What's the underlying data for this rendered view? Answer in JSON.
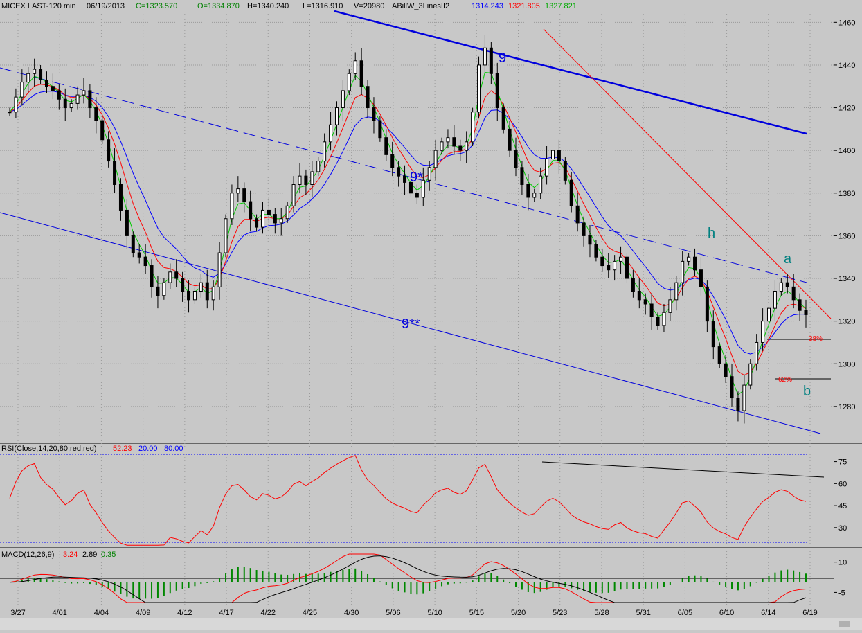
{
  "header": {
    "symbol": "MICEX LAST-120 min",
    "date": "06/19/2013",
    "close": "C=1323.570",
    "open": "O=1334.870",
    "high": "H=1340.240",
    "low": "L=1316.910",
    "volume": "V=20980",
    "indicator": "ABillW_3LinesII2",
    "ma_blue": "1314.243",
    "ma_red": "1321.805",
    "ma_green": "1327.821"
  },
  "colors": {
    "background": "#c8c8c8",
    "candles": "#000000",
    "ma_blue": "#0000ff",
    "ma_red": "#ff0000",
    "ma_green": "#00cc00",
    "trend_blue": "#0000ff",
    "rsi": "#ff0000",
    "macd": "#ff0000",
    "signal": "#000000",
    "histogram": "#008800"
  },
  "annotations": {
    "wave_9": "9",
    "wave_9_star": "9*",
    "wave_9_2star": "9**",
    "wave_h": "h",
    "wave_a": "a",
    "wave_b": "b",
    "fib_38": "38%",
    "fib_62": "62%"
  },
  "rsi_panel": {
    "label": "RSI(Close,14,20,80,red,red)",
    "value": "52.23",
    "low": "20.00",
    "high": "80.00",
    "ticks": [
      75,
      60,
      45,
      30
    ]
  },
  "macd_panel": {
    "label": "MACD(12,26,9)",
    "macd": "3.24",
    "signal": "2.89",
    "hist": "0.35",
    "ticks": [
      10,
      -5
    ]
  },
  "chart_data": {
    "type": "line",
    "title": "MICEX LAST-120 min",
    "price_axis_ticks": [
      1460,
      1440,
      1420,
      1400,
      1380,
      1360,
      1340,
      1320,
      1300,
      1280
    ],
    "ylim": [
      1266,
      1464
    ],
    "date_labels": [
      "3/27",
      "4/01",
      "4/04",
      "4/09",
      "4/12",
      "4/17",
      "4/22",
      "4/25",
      "4/30",
      "5/06",
      "5/10",
      "5/15",
      "5/20",
      "5/23",
      "5/28",
      "5/31",
      "6/05",
      "6/10",
      "6/14",
      "6/19"
    ],
    "series": [
      {
        "values": [
          1418,
          1425,
          1432,
          1436,
          1438,
          1433,
          1430,
          1428,
          1424,
          1420,
          1422,
          1426,
          1428,
          1420,
          1414,
          1405,
          1395,
          1384,
          1372,
          1360,
          1352,
          1350,
          1346,
          1336,
          1332,
          1338,
          1343,
          1340,
          1334,
          1330,
          1334,
          1338,
          1330,
          1336,
          1352,
          1368,
          1380,
          1382,
          1376,
          1368,
          1364,
          1372,
          1370,
          1366,
          1368,
          1374,
          1384,
          1388,
          1384,
          1390,
          1395,
          1404,
          1412,
          1420,
          1428,
          1436,
          1442,
          1430,
          1420,
          1414,
          1406,
          1398,
          1392,
          1388,
          1385,
          1380,
          1378,
          1386,
          1392,
          1400,
          1404,
          1406,
          1402,
          1400,
          1404,
          1418,
          1440,
          1448,
          1436,
          1420,
          1410,
          1400,
          1392,
          1384,
          1378,
          1380,
          1388,
          1396,
          1400,
          1395,
          1386,
          1374,
          1366,
          1360,
          1356,
          1350,
          1346,
          1344,
          1348,
          1350,
          1340,
          1334,
          1330,
          1328,
          1322,
          1318,
          1324,
          1330,
          1338,
          1348,
          1350,
          1344,
          1336,
          1320,
          1308,
          1300,
          1294,
          1284,
          1278,
          1290,
          1300,
          1310,
          1320,
          1326,
          1334,
          1338,
          1336,
          1330,
          1325,
          1323
        ]
      }
    ]
  }
}
